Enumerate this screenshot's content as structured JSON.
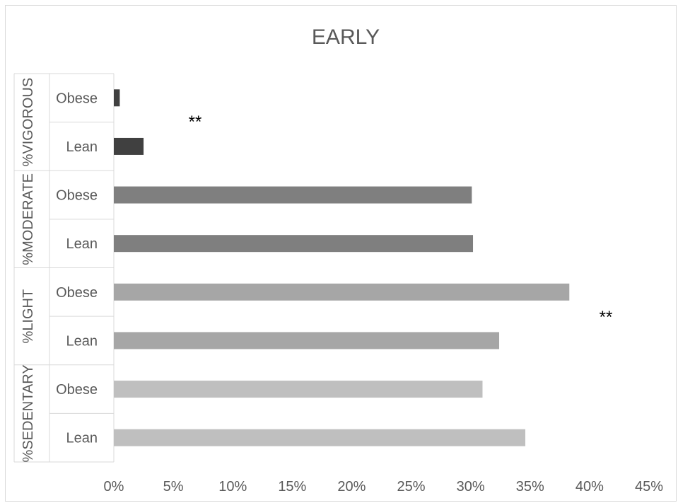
{
  "chart_data": {
    "type": "bar",
    "orientation": "horizontal",
    "title": "EARLY",
    "groups": [
      {
        "label": "%VIGOROUS",
        "color": "#404040",
        "rows": [
          {
            "label": "Obese",
            "value": 0.5
          },
          {
            "label": "Lean",
            "value": 2.5
          }
        ]
      },
      {
        "label": "%MODERATE",
        "color": "#7f7f7f",
        "rows": [
          {
            "label": "Obese",
            "value": 30.1
          },
          {
            "label": "Lean",
            "value": 30.2
          }
        ]
      },
      {
        "label": "%LIGHT",
        "color": "#a6a6a6",
        "rows": [
          {
            "label": "Obese",
            "value": 38.3
          },
          {
            "label": "Lean",
            "value": 32.4
          }
        ]
      },
      {
        "label": "%SEDENTARY",
        "color": "#bfbfbf",
        "rows": [
          {
            "label": "Obese",
            "value": 31.0
          },
          {
            "label": "Lean",
            "value": 34.6
          }
        ]
      }
    ],
    "xlim": [
      0,
      45
    ],
    "xticks": [
      "0%",
      "5%",
      "10%",
      "15%",
      "20%",
      "25%",
      "30%",
      "35%",
      "40%",
      "45%"
    ],
    "annotations": [
      {
        "text": "**",
        "group": "%VIGOROUS"
      },
      {
        "text": "**",
        "group": "%LIGHT"
      }
    ],
    "grid": false,
    "legend": "none"
  }
}
